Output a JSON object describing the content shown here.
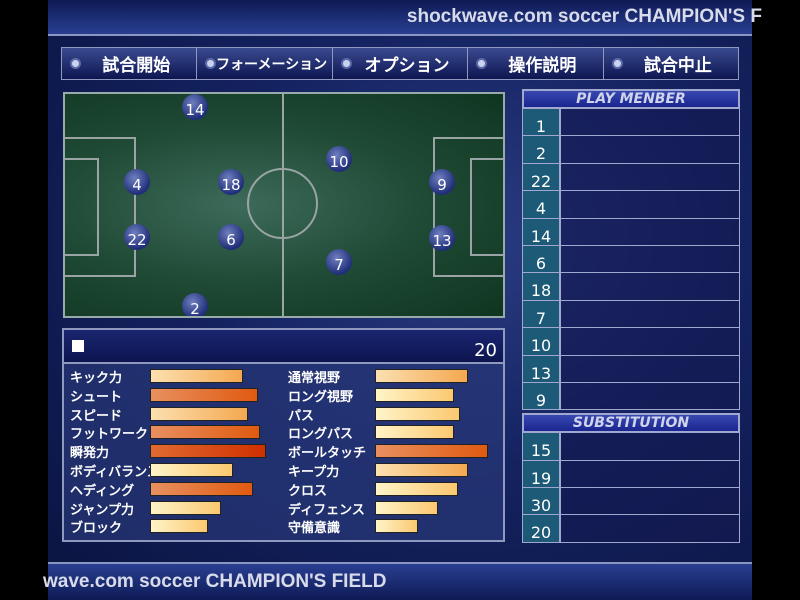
{
  "title_top": "shockwave.com soccer CHAMPION'S F",
  "title_bottom": "wave.com soccer CHAMPION'S FIELD",
  "menu": [
    {
      "label": "試合開始",
      "icon": "soccer-ball-icon"
    },
    {
      "label": "フォーメーション",
      "icon": "soccer-ball-icon"
    },
    {
      "label": "オプション",
      "icon": "soccer-ball-icon"
    },
    {
      "label": "操作説明",
      "icon": "soccer-ball-icon"
    },
    {
      "label": "試合中止",
      "icon": "soccer-ball-icon"
    }
  ],
  "field": {
    "players": [
      "14",
      "4",
      "18",
      "22",
      "6",
      "2",
      "10",
      "7",
      "9",
      "13"
    ]
  },
  "stats": {
    "player_number": "20",
    "left": [
      {
        "label": "キック力",
        "value": 74,
        "level": "normal"
      },
      {
        "label": "シュート",
        "value": 86,
        "level": "high"
      },
      {
        "label": "スピード",
        "value": 78,
        "level": "normal"
      },
      {
        "label": "フットワーク",
        "value": 88,
        "level": "high"
      },
      {
        "label": "瞬発力",
        "value": 93,
        "level": "max"
      },
      {
        "label": "ボディバランス",
        "value": 66,
        "level": "low"
      },
      {
        "label": "ヘディング",
        "value": 82,
        "level": "high"
      },
      {
        "label": "ジャンプ力",
        "value": 57,
        "level": "low"
      },
      {
        "label": "ブロック",
        "value": 46,
        "level": "low"
      }
    ],
    "right": [
      {
        "label": "通常視野",
        "value": 74,
        "level": "normal"
      },
      {
        "label": "ロング視野",
        "value": 63,
        "level": "low"
      },
      {
        "label": "パス",
        "value": 68,
        "level": "low"
      },
      {
        "label": "ロングパス",
        "value": 63,
        "level": "low"
      },
      {
        "label": "ボールタッチ",
        "value": 90,
        "level": "high"
      },
      {
        "label": "キープ力",
        "value": 74,
        "level": "normal"
      },
      {
        "label": "クロス",
        "value": 66,
        "level": "low"
      },
      {
        "label": "ディフェンス",
        "value": 50,
        "level": "low"
      },
      {
        "label": "守備意識",
        "value": 34,
        "level": "low"
      }
    ]
  },
  "play_member": {
    "title": "PLAY MENBER",
    "numbers": [
      "1",
      "2",
      "22",
      "4",
      "14",
      "6",
      "18",
      "7",
      "10",
      "13",
      "9"
    ]
  },
  "substitution": {
    "title": "SUBSTITUTION",
    "numbers": [
      "15",
      "19",
      "30",
      "20"
    ]
  },
  "colors": {
    "bar_low": "#fde6a0",
    "bar_normal": "#f6c070",
    "bar_high": "#e06a30",
    "bar_max": "#d43a10"
  }
}
